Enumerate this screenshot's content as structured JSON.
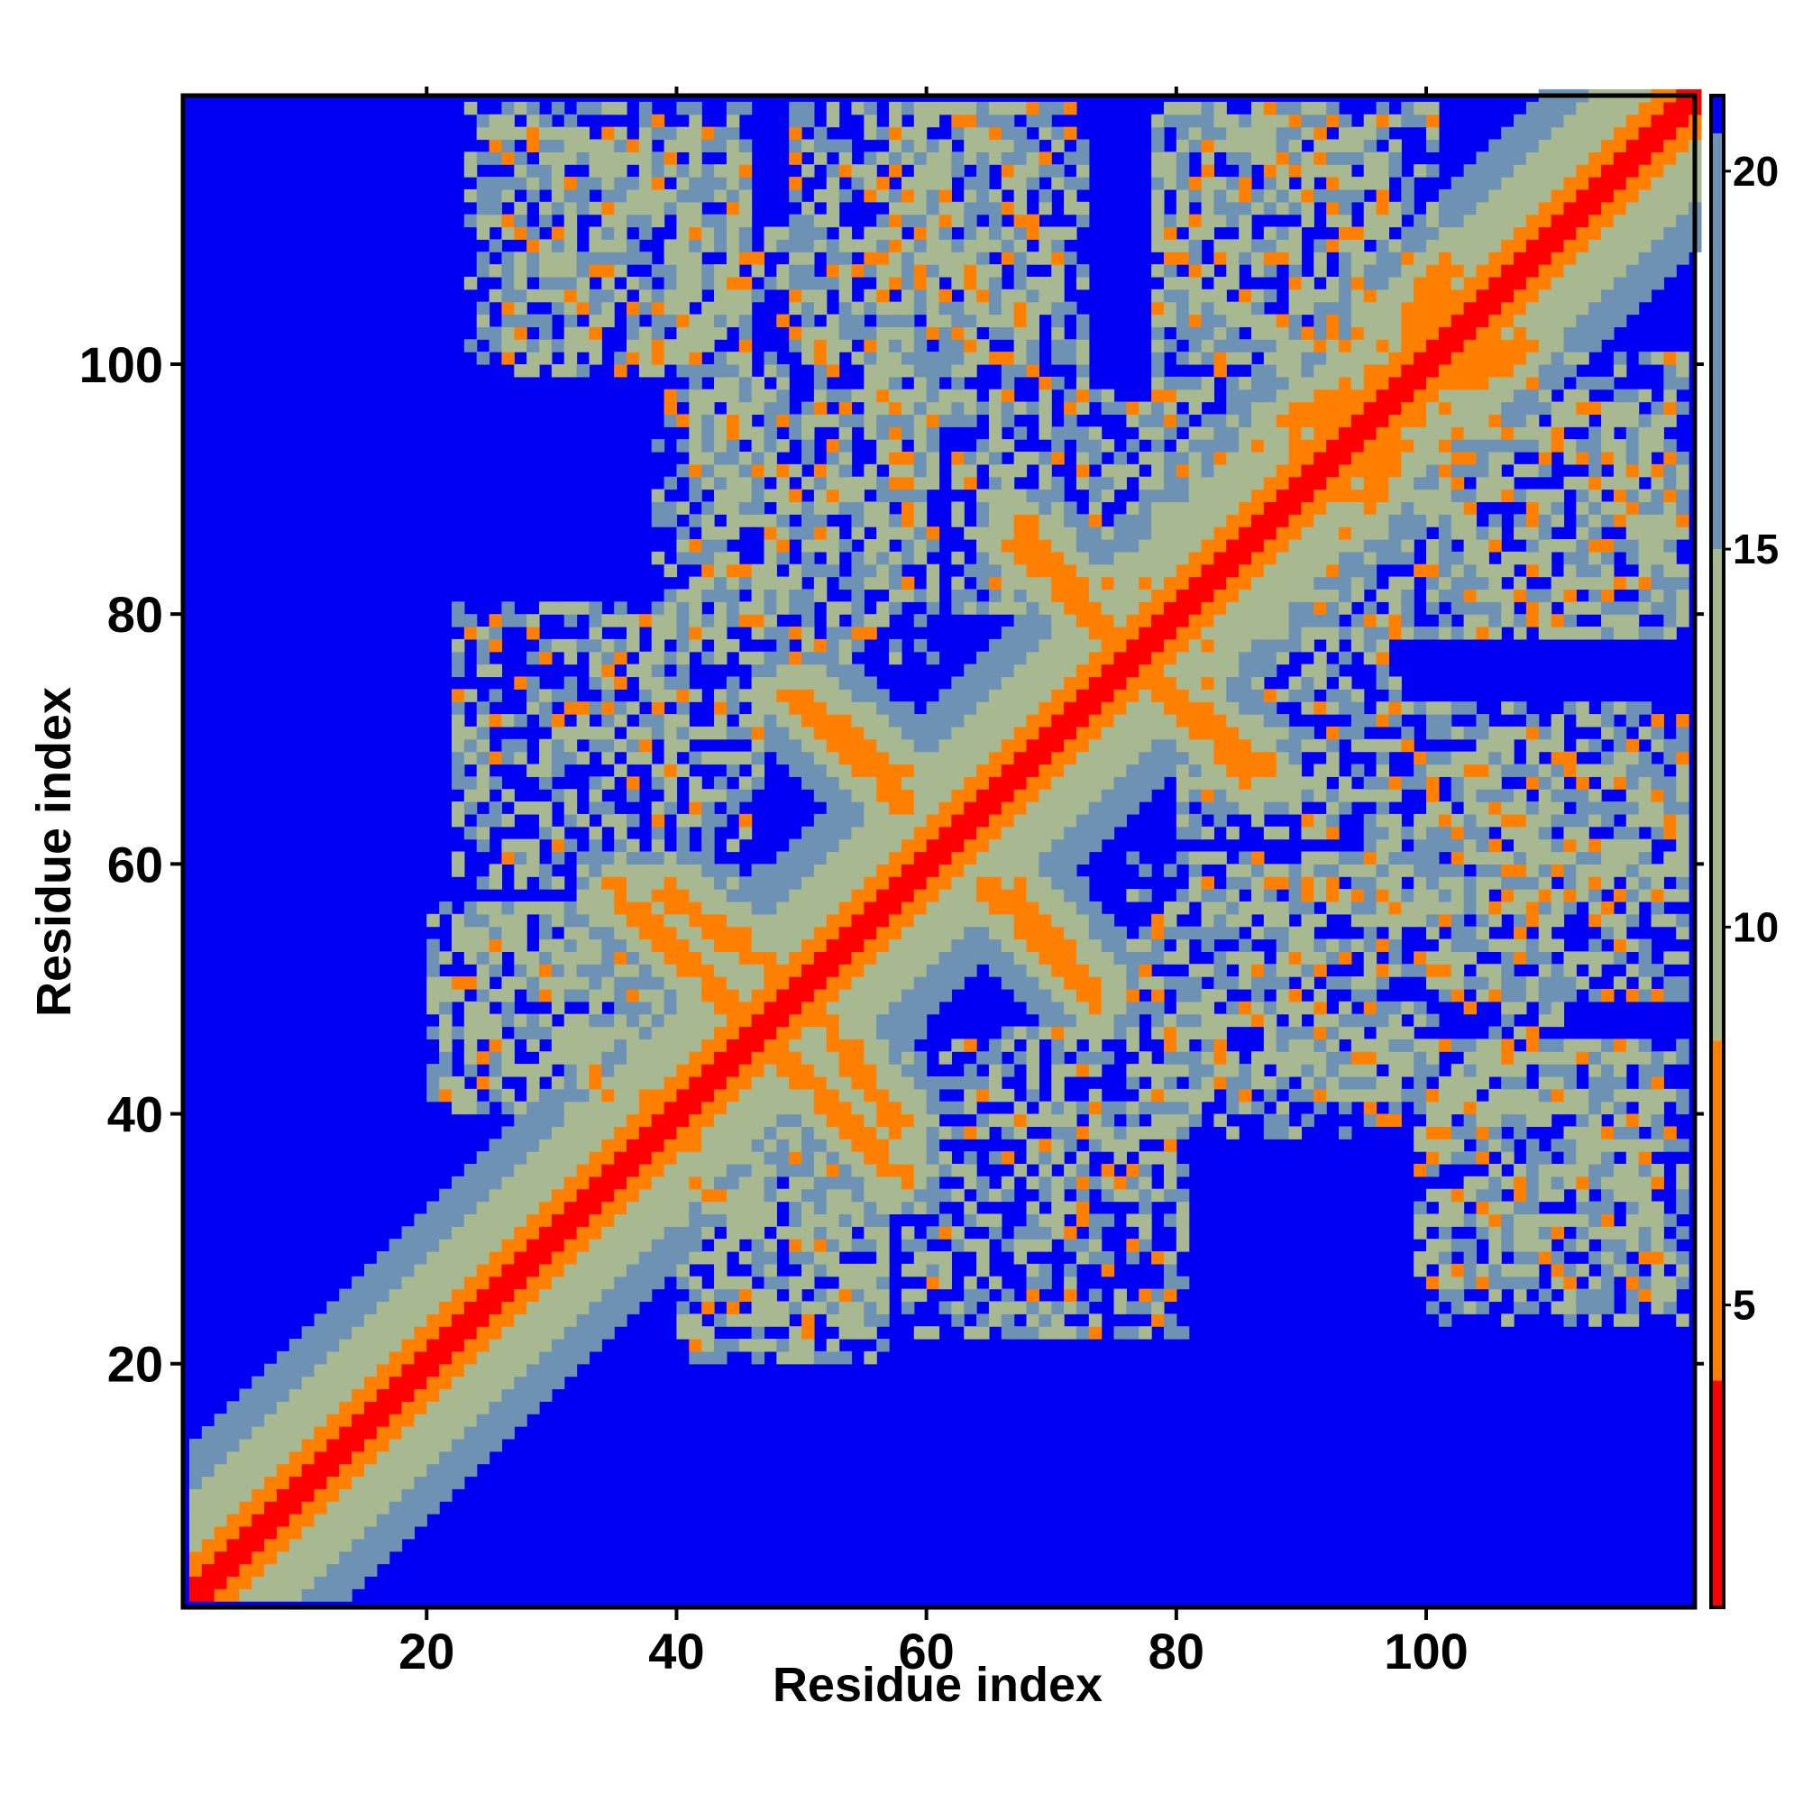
{
  "chart_data": {
    "type": "heatmap",
    "title": "",
    "xlabel": "Residue index",
    "ylabel": "Residue index",
    "n_residues": 121,
    "xlim": [
      1,
      121
    ],
    "ylim": [
      1,
      121
    ],
    "x_ticks": [
      20,
      40,
      60,
      80,
      100
    ],
    "y_ticks": [
      20,
      40,
      60,
      80,
      100
    ],
    "colorbar": {
      "range": [
        1,
        21
      ],
      "ticks": [
        5,
        10,
        15,
        20
      ],
      "colors": {
        "contact_core": "#ff0000",
        "contact": "#ff8000",
        "near": "#a8b890",
        "mid": "#6e92b4",
        "far": "#0000f5"
      }
    },
    "diagonal_band": {
      "core_width": 1,
      "orange_width": 3,
      "green_width": 8,
      "blue_width": 12
    },
    "secondary_contacts": [
      {
        "start": [
          35,
          57
        ],
        "end": [
          45,
          47
        ],
        "label": "antiparallel 1"
      },
      {
        "start": [
          51,
          47
        ],
        "end": [
          57,
          39
        ],
        "label": "antiparallel 2"
      },
      {
        "start": [
          49,
          73
        ],
        "end": [
          58,
          64
        ],
        "label": "antiparallel 3"
      },
      {
        "start": [
          67,
          57
        ],
        "end": [
          73,
          49
        ],
        "label": "antiparallel 4"
      },
      {
        "start": [
          67,
          86
        ],
        "end": [
          74,
          78
        ],
        "label": "antiparallel 5"
      },
      {
        "start": [
          77,
          75
        ],
        "end": [
          85,
          67
        ],
        "label": "antiparallel 6"
      },
      {
        "start": [
          89,
          95
        ],
        "end": [
          103,
          101
        ],
        "label": "parallel 1"
      },
      {
        "start": [
          90,
          92
        ],
        "end": [
          107,
          101
        ],
        "label": "parallel 2"
      }
    ],
    "noise_regions": [
      {
        "x": [
          23,
          45
        ],
        "y": [
          100,
          120
        ],
        "density": 0.55
      },
      {
        "x": [
          49,
          70
        ],
        "y": [
          100,
          120
        ],
        "density": 0.6
      },
      {
        "x": [
          78,
          100
        ],
        "y": [
          100,
          120
        ],
        "density": 0.6
      },
      {
        "x": [
          38,
          60
        ],
        "y": [
          76,
          97
        ],
        "density": 0.5
      },
      {
        "x": [
          62,
          82
        ],
        "y": [
          80,
          97
        ],
        "density": 0.55
      },
      {
        "x": [
          86,
          120
        ],
        "y": [
          78,
          96
        ],
        "density": 0.5
      },
      {
        "x": [
          20,
          36
        ],
        "y": [
          41,
          56
        ],
        "density": 0.5
      },
      {
        "x": [
          40,
          55
        ],
        "y": [
          20,
          38
        ],
        "density": 0.55
      },
      {
        "x": [
          58,
          80
        ],
        "y": [
          22,
          46
        ],
        "density": 0.5
      },
      {
        "x": [
          82,
          110
        ],
        "y": [
          41,
          60
        ],
        "density": 0.5
      },
      {
        "x": [
          95,
          120
        ],
        "y": [
          55,
          72
        ],
        "density": 0.5
      },
      {
        "x": [
          99,
          118
        ],
        "y": [
          26,
          45
        ],
        "density": 0.55
      },
      {
        "x": [
          28,
          40
        ],
        "y": [
          66,
          74
        ],
        "density": 0.35
      }
    ]
  }
}
